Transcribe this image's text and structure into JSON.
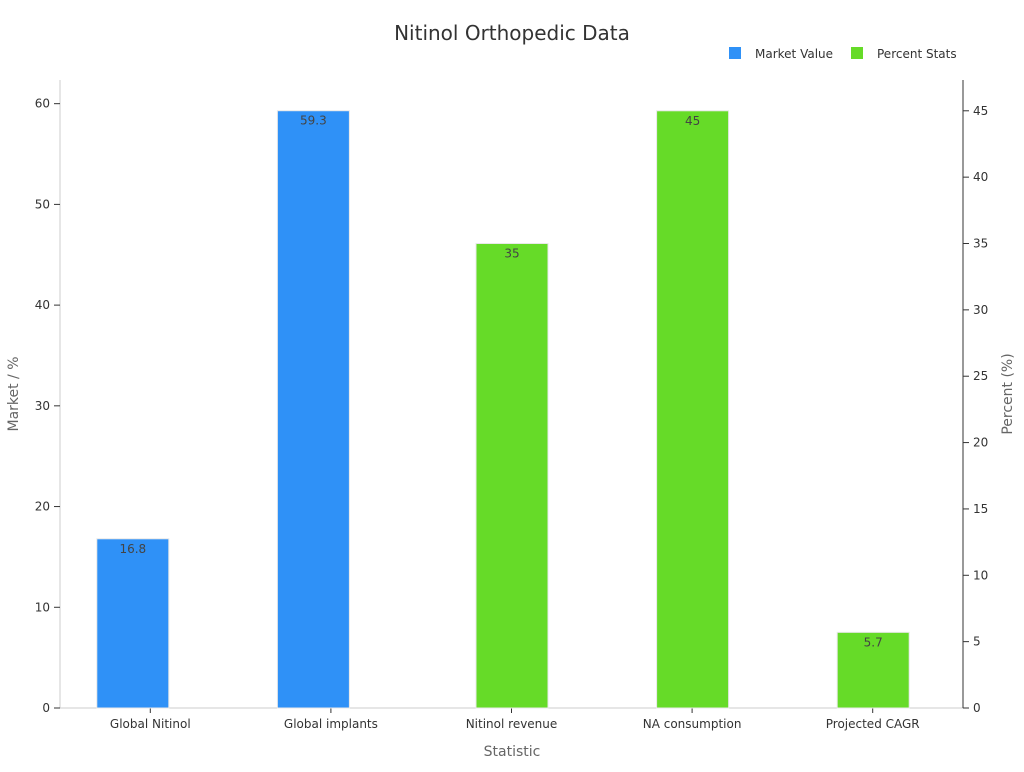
{
  "chart_data": {
    "type": "bar",
    "title": "Nitinol Orthopedic Data",
    "xlabel": "Statistic",
    "ylabel_left": "Market / %",
    "ylabel_right": "Percent (%)",
    "categories": [
      "Global Nitinol",
      "Global implants",
      "Nitinol revenue",
      "NA consumption",
      "Projected CAGR"
    ],
    "series": [
      {
        "name": "Market Value",
        "axis": "left",
        "color": "#2f91f7",
        "values": [
          16.8,
          59.3,
          null,
          null,
          null
        ]
      },
      {
        "name": "Percent Stats",
        "axis": "right",
        "color": "#66db28",
        "values": [
          null,
          null,
          35,
          45,
          5.7
        ]
      }
    ],
    "y_left": {
      "min": 0,
      "max": 62.35,
      "ticks": [
        0,
        10,
        20,
        30,
        40,
        50,
        60
      ]
    },
    "y_right": {
      "min": 0,
      "max": 47.32,
      "ticks": [
        0,
        5,
        10,
        15,
        20,
        25,
        30,
        35,
        40,
        45
      ]
    },
    "grid": false,
    "legend_position": "top-right"
  }
}
